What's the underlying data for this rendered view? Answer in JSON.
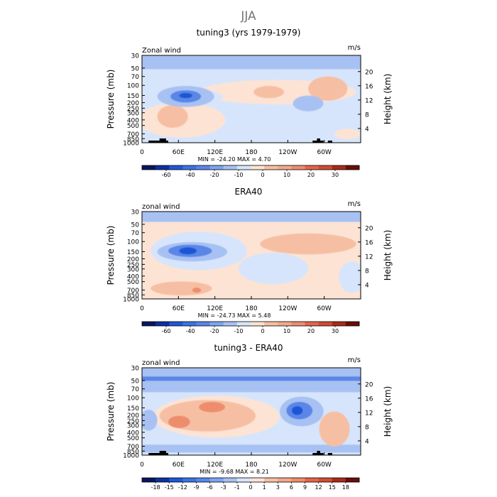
{
  "figure_title": "JJA",
  "colors": {
    "neg_deep": "#1f57d6",
    "neg_mid": "#5a86e8",
    "neg_light": "#a7c1f3",
    "neg_pale": "#d6e5fb",
    "pos_pale": "#fde3d4",
    "pos_light": "#f6bfa3",
    "pos_mid": "#ee8d6c",
    "pos_deep": "#cf4d34",
    "frame": "#000000"
  },
  "chart_data": [
    {
      "type": "heatmap",
      "title": "tuning3 (yrs 1979-1979)",
      "left_label": "Zonal wind",
      "right_label": "m/s",
      "ylabel_left": "Pressure (mb)",
      "ylabel_right": "Height (km)",
      "x_ticks": [
        "0",
        "60E",
        "120E",
        "180",
        "120W",
        "60W"
      ],
      "y_ticks_pressure": [
        "30",
        "50",
        "70",
        "100",
        "150",
        "200",
        "250",
        "300",
        "400",
        "500",
        "700",
        "850",
        "1000"
      ],
      "y_ticks_height": [
        "20",
        "16",
        "12",
        "8",
        "4"
      ],
      "stats_text": "MIN = -24.20   MAX =   4.70",
      "min": -24.2,
      "max": 4.7,
      "colorbar_ticks": [
        "-60",
        "-40",
        "-20",
        "-10",
        "0",
        "10",
        "20",
        "30"
      ],
      "colorbar_colors": [
        "#07165e",
        "#0d2f9f",
        "#1f57d6",
        "#3a74e2",
        "#5a86e8",
        "#7ea4ef",
        "#a7c1f3",
        "#d6e5fb",
        "#fde3d4",
        "#f6bfa3",
        "#f2a88b",
        "#ee8d6c",
        "#e3654a",
        "#cf4d34",
        "#a92a1a",
        "#6b0d08"
      ],
      "grid": false
    },
    {
      "type": "heatmap",
      "title": "ERA40",
      "left_label": "zonal wind",
      "right_label": "m/s",
      "ylabel_left": "Pressure (mb)",
      "ylabel_right": "Height (km)",
      "x_ticks": [
        "0",
        "60E",
        "120E",
        "180",
        "120W",
        "60W"
      ],
      "y_ticks_pressure": [
        "30",
        "50",
        "70",
        "100",
        "150",
        "200",
        "250",
        "300",
        "400",
        "500",
        "700",
        "850",
        "1000"
      ],
      "y_ticks_height": [
        "20",
        "16",
        "12",
        "8",
        "4"
      ],
      "stats_text": "MIN = -24.73   MAX =   5.48",
      "min": -24.73,
      "max": 5.48,
      "colorbar_ticks": [
        "-60",
        "-40",
        "-20",
        "-10",
        "0",
        "10",
        "20",
        "30"
      ],
      "colorbar_colors": [
        "#07165e",
        "#0d2f9f",
        "#1f57d6",
        "#3a74e2",
        "#5a86e8",
        "#7ea4ef",
        "#a7c1f3",
        "#d6e5fb",
        "#fde3d4",
        "#f6bfa3",
        "#f2a88b",
        "#ee8d6c",
        "#e3654a",
        "#cf4d34",
        "#a92a1a",
        "#6b0d08"
      ],
      "grid": false
    },
    {
      "type": "heatmap",
      "title": "tuning3 - ERA40",
      "left_label": "zonal wind",
      "right_label": "m/s",
      "ylabel_left": "Pressure (mb)",
      "ylabel_right": "Height (km)",
      "x_ticks": [
        "0",
        "60E",
        "120E",
        "180",
        "120W",
        "60W"
      ],
      "y_ticks_pressure": [
        "30",
        "50",
        "70",
        "100",
        "150",
        "200",
        "250",
        "300",
        "400",
        "500",
        "700",
        "850",
        "1000"
      ],
      "y_ticks_height": [
        "20",
        "16",
        "12",
        "8",
        "4"
      ],
      "stats_text": "MIN =  -9.68   MAX =   8.21",
      "min": -9.68,
      "max": 8.21,
      "colorbar_ticks": [
        "-18",
        "-15",
        "-12",
        "-9",
        "-6",
        "-3",
        "-1",
        "0",
        "1",
        "3",
        "6",
        "9",
        "12",
        "15",
        "18"
      ],
      "colorbar_colors": [
        "#07165e",
        "#0d2f9f",
        "#1f57d6",
        "#3a74e2",
        "#5a86e8",
        "#7ea4ef",
        "#a7c1f3",
        "#d6e5fb",
        "#fde3d4",
        "#f6bfa3",
        "#f2a88b",
        "#ee8d6c",
        "#e3654a",
        "#cf4d34",
        "#a92a1a",
        "#6b0d08"
      ],
      "grid": false
    }
  ]
}
